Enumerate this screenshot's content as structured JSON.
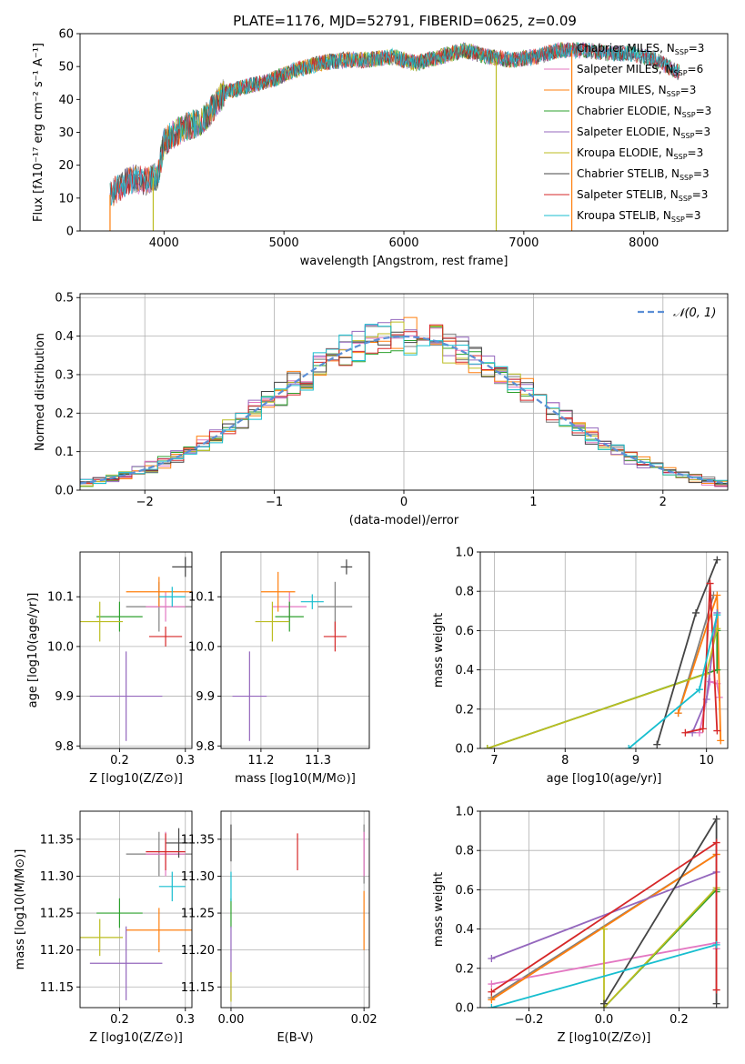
{
  "figure": {
    "title": "PLATE=1176, MJD=52791, FIBERID=0625, z=0.09",
    "colors": [
      "#7f7f7f",
      "#e377c2",
      "#ff7f0e",
      "#2ca02c",
      "#9467bd",
      "#bcbd22",
      "#444444",
      "#d62728",
      "#17becf"
    ],
    "legend_labels": [
      [
        "Chabrier MILES, N",
        "SSP",
        "=3"
      ],
      [
        "Salpeter MILES, N",
        "SSP",
        "=6"
      ],
      [
        "Kroupa MILES, N",
        "SSP",
        "=3"
      ],
      [
        "Chabrier ELODIE, N",
        "SSP",
        "=3"
      ],
      [
        "Salpeter ELODIE, N",
        "SSP",
        "=3"
      ],
      [
        "Kroupa ELODIE, N",
        "SSP",
        "=3"
      ],
      [
        "Chabrier STELIB, N",
        "SSP",
        "=3"
      ],
      [
        "Salpeter STELIB, N",
        "SSP",
        "=3"
      ],
      [
        "Kroupa STELIB, N",
        "SSP",
        "=3"
      ]
    ]
  },
  "chart_data": [
    {
      "id": "spectrum",
      "type": "line",
      "title": "PLATE=1176, MJD=52791, FIBERID=0625, z=0.09",
      "xlabel": "wavelength [Angstrom, rest frame]",
      "ylabel": "Flux [fλ10⁻¹⁷ erg cm⁻² s⁻¹ A⁻¹]",
      "xlim": [
        3300,
        8700
      ],
      "ylim": [
        0,
        60
      ],
      "xticks": [
        4000,
        5000,
        6000,
        7000,
        8000
      ],
      "yticks": [
        0,
        10,
        20,
        30,
        40,
        50,
        60
      ],
      "legend": "upper right",
      "continuum": {
        "x": [
          3550,
          3650,
          3750,
          3850,
          3950,
          4000,
          4100,
          4200,
          4300,
          4400,
          4500,
          4700,
          4900,
          5100,
          5300,
          5500,
          5700,
          5900,
          6100,
          6300,
          6500,
          6700,
          6900,
          7100,
          7300,
          7500,
          7700,
          7900,
          8100,
          8300
        ],
        "y": [
          11,
          14,
          16,
          15,
          17,
          27,
          30,
          32,
          33,
          37,
          42,
          44,
          46,
          49,
          51,
          52,
          52,
          53,
          51,
          53,
          55,
          53,
          52,
          53,
          55,
          55,
          54,
          54,
          52,
          48
        ]
      },
      "series_ranges": [
        [
          3550,
          8300
        ],
        [
          3550,
          7800
        ],
        [
          3550,
          7400
        ],
        [
          3900,
          8300
        ],
        [
          3550,
          8300
        ],
        [
          3900,
          6770
        ],
        [
          3550,
          8300
        ],
        [
          3550,
          8300
        ],
        [
          3550,
          8300
        ]
      ],
      "drop_lines": [
        3550,
        3910,
        6770,
        7400
      ]
    },
    {
      "id": "residuals",
      "type": "histogram",
      "xlabel": "(data-model)/error",
      "ylabel": "Normed distribution",
      "xlim": [
        -2.5,
        2.5
      ],
      "ylim": [
        0,
        0.51
      ],
      "xticks": [
        -2,
        -1,
        0,
        1,
        2
      ],
      "yticks": [
        0.0,
        0.1,
        0.2,
        0.3,
        0.4,
        0.5
      ],
      "bin_width": 0.1,
      "reference_label": "𝒩(0, 1)",
      "reference_color": "#5b8fd6",
      "legend": "upper right"
    },
    {
      "id": "age_vs_Z",
      "type": "scatter",
      "xlabel": "Z [log10(Z/Z⊙)]",
      "ylabel": "age  [log10(age/yr)]",
      "xlim": [
        0.14,
        0.31
      ],
      "ylim": [
        9.795,
        10.19
      ],
      "xticks": [
        0.2,
        0.3
      ],
      "yticks": [
        9.8,
        9.9,
        10.0,
        10.1
      ],
      "points": [
        {
          "x": 0.26,
          "y": 10.08,
          "xerr": 0.05,
          "yerr": 0.05
        },
        {
          "x": 0.27,
          "y": 10.08,
          "xerr": 0.03,
          "yerr": 0.03
        },
        {
          "x": 0.26,
          "y": 10.11,
          "xerr": 0.05,
          "yerr": 0.03
        },
        {
          "x": 0.2,
          "y": 10.06,
          "xerr": 0.035,
          "yerr": 0.03
        },
        {
          "x": 0.21,
          "y": 9.9,
          "xerr": 0.055,
          "yerr": 0.09
        },
        {
          "x": 0.17,
          "y": 10.05,
          "xerr": 0.035,
          "yerr": 0.04
        },
        {
          "x": 0.3,
          "y": 10.16,
          "xerr": 0.02,
          "yerr": 0.02
        },
        {
          "x": 0.27,
          "y": 10.02,
          "xerr": 0.025,
          "yerr": 0.02
        },
        {
          "x": 0.28,
          "y": 10.1,
          "xerr": 0.02,
          "yerr": 0.02
        }
      ]
    },
    {
      "id": "age_vs_mass",
      "type": "scatter",
      "xlabel": "mass [log10(M/M⊙)]",
      "ylabel": "",
      "xlim": [
        11.13,
        11.39
      ],
      "ylim": [
        9.795,
        10.19
      ],
      "xticks": [
        11.2,
        11.3
      ],
      "yticks": [
        9.8,
        9.9,
        10.0,
        10.1
      ],
      "points": [
        {
          "x": 11.33,
          "y": 10.08,
          "xerr": 0.03,
          "yerr": 0.05
        },
        {
          "x": 11.25,
          "y": 10.08,
          "xerr": 0.03,
          "yerr": 0.03
        },
        {
          "x": 11.23,
          "y": 10.11,
          "xerr": 0.03,
          "yerr": 0.04
        },
        {
          "x": 11.25,
          "y": 10.06,
          "xerr": 0.025,
          "yerr": 0.03
        },
        {
          "x": 11.18,
          "y": 9.9,
          "xerr": 0.03,
          "yerr": 0.09
        },
        {
          "x": 11.22,
          "y": 10.05,
          "xerr": 0.03,
          "yerr": 0.04
        },
        {
          "x": 11.35,
          "y": 10.16,
          "xerr": 0.01,
          "yerr": 0.015
        },
        {
          "x": 11.33,
          "y": 10.02,
          "xerr": 0.02,
          "yerr": 0.03
        },
        {
          "x": 11.29,
          "y": 10.09,
          "xerr": 0.02,
          "yerr": 0.015
        }
      ]
    },
    {
      "id": "mass_weight_vs_age",
      "type": "line",
      "xlabel": "age  [log10(age/yr)]",
      "ylabel": "mass weight",
      "xlim": [
        6.8,
        10.3
      ],
      "ylim": [
        0,
        1.0
      ],
      "xticks": [
        7,
        8,
        9,
        10
      ],
      "yticks": [
        0.0,
        0.2,
        0.4,
        0.6,
        0.8,
        1.0
      ],
      "series": [
        {
          "x": [
            9.6,
            10.1
          ],
          "y": [
            0.18,
            0.78
          ]
        },
        {
          "x": [
            9.9,
            10.05,
            10.15,
            10.18
          ],
          "y": [
            0.08,
            0.34,
            0.33,
            0.26
          ]
        },
        {
          "x": [
            9.6,
            10.15,
            10.2
          ],
          "y": [
            0.18,
            0.78,
            0.04
          ]
        },
        {
          "x": [
            6.9,
            10.15,
            10.15
          ],
          "y": [
            0.0,
            0.4,
            0.6
          ]
        },
        {
          "x": [
            9.8,
            10.0,
            10.15
          ],
          "y": [
            0.08,
            0.25,
            0.69
          ]
        },
        {
          "x": [
            6.9,
            10.0,
            10.15
          ],
          "y": [
            0.0,
            0.38,
            0.61
          ]
        },
        {
          "x": [
            9.3,
            9.85,
            10.15
          ],
          "y": [
            0.02,
            0.69,
            0.96
          ]
        },
        {
          "x": [
            9.7,
            9.95,
            10.05,
            10.15
          ],
          "y": [
            0.08,
            0.1,
            0.84,
            0.09
          ]
        },
        {
          "x": [
            8.9,
            9.9,
            10.15
          ],
          "y": [
            0.0,
            0.3,
            0.68
          ]
        }
      ]
    },
    {
      "id": "mass_vs_Z",
      "type": "scatter",
      "xlabel": "Z [log10(Z/Z⊙)]",
      "ylabel": "mass [log10(M/M⊙)]",
      "xlim": [
        0.14,
        0.31
      ],
      "ylim": [
        11.122,
        11.388
      ],
      "xticks": [
        0.2,
        0.3
      ],
      "yticks": [
        11.15,
        11.2,
        11.25,
        11.3,
        11.35
      ],
      "points": [
        {
          "x": 0.26,
          "y": 11.33,
          "xerr": 0.05,
          "yerr": 0.03
        },
        {
          "x": 0.27,
          "y": 11.33,
          "xerr": 0.03,
          "yerr": 0.03
        },
        {
          "x": 0.26,
          "y": 11.227,
          "xerr": 0.05,
          "yerr": 0.03
        },
        {
          "x": 0.2,
          "y": 11.25,
          "xerr": 0.035,
          "yerr": 0.02
        },
        {
          "x": 0.21,
          "y": 11.182,
          "xerr": 0.055,
          "yerr": 0.05
        },
        {
          "x": 0.17,
          "y": 11.217,
          "xerr": 0.035,
          "yerr": 0.025
        },
        {
          "x": 0.29,
          "y": 11.345,
          "xerr": 0.02,
          "yerr": 0.02
        },
        {
          "x": 0.27,
          "y": 11.333,
          "xerr": 0.03,
          "yerr": 0.025
        },
        {
          "x": 0.28,
          "y": 11.286,
          "xerr": 0.02,
          "yerr": 0.02
        }
      ]
    },
    {
      "id": "mass_vs_ebv",
      "type": "scatter",
      "xlabel": "E(B-V)",
      "ylabel": "",
      "xlim": [
        -0.0015,
        0.0208
      ],
      "ylim": [
        11.122,
        11.388
      ],
      "xticks": [
        0.0,
        0.02
      ],
      "yticks": [
        11.15,
        11.2,
        11.25,
        11.3,
        11.35
      ],
      "points": [
        {
          "x": 0.02,
          "y": 11.33,
          "xerr": 0,
          "yerr": 0.04
        },
        {
          "x": 0.02,
          "y": 11.33,
          "xerr": 0,
          "yerr": 0.03
        },
        {
          "x": 0.02,
          "y": 11.24,
          "xerr": 0,
          "yerr": 0.04
        },
        {
          "x": 0.0,
          "y": 11.25,
          "xerr": 0,
          "yerr": 0.02
        },
        {
          "x": 0.0,
          "y": 11.182,
          "xerr": 0,
          "yerr": 0.05
        },
        {
          "x": 0.0,
          "y": 11.15,
          "xerr": 0,
          "yerr": 0.02
        },
        {
          "x": 0.0,
          "y": 11.345,
          "xerr": 0,
          "yerr": 0.025
        },
        {
          "x": 0.01,
          "y": 11.333,
          "xerr": 0,
          "yerr": 0.025
        },
        {
          "x": 0.0,
          "y": 11.286,
          "xerr": 0,
          "yerr": 0.02
        }
      ]
    },
    {
      "id": "mass_weight_vs_Z",
      "type": "line",
      "xlabel": "Z [log10(Z/Z⊙)]",
      "ylabel": "mass weight",
      "xlim": [
        -0.33,
        0.33
      ],
      "ylim": [
        0,
        1.0
      ],
      "xticks": [
        -0.2,
        0.0,
        0.2
      ],
      "yticks": [
        0.0,
        0.2,
        0.4,
        0.6,
        0.8,
        1.0
      ],
      "series": [
        {
          "x": [
            -0.3,
            0.3
          ],
          "y": [
            0.05,
            0.78
          ]
        },
        {
          "x": [
            -0.3,
            0.3,
            0.3
          ],
          "y": [
            0.12,
            0.33,
            0.3
          ]
        },
        {
          "x": [
            -0.3,
            0.3
          ],
          "y": [
            0.04,
            0.78
          ]
        },
        {
          "x": [
            0.0,
            0.3,
            0.3
          ],
          "y": [
            0.0,
            0.6,
            0.59
          ]
        },
        {
          "x": [
            -0.3,
            0.3
          ],
          "y": [
            0.25,
            0.69
          ]
        },
        {
          "x": [
            0.0,
            0.0,
            0.3
          ],
          "y": [
            0.4,
            0.0,
            0.61
          ]
        },
        {
          "x": [
            0.0,
            0.3,
            0.3
          ],
          "y": [
            0.02,
            0.96,
            0.02
          ]
        },
        {
          "x": [
            -0.3,
            0.3,
            0.3
          ],
          "y": [
            0.08,
            0.84,
            0.09
          ]
        },
        {
          "x": [
            -0.3,
            0.3
          ],
          "y": [
            0.0,
            0.32
          ]
        }
      ]
    }
  ]
}
